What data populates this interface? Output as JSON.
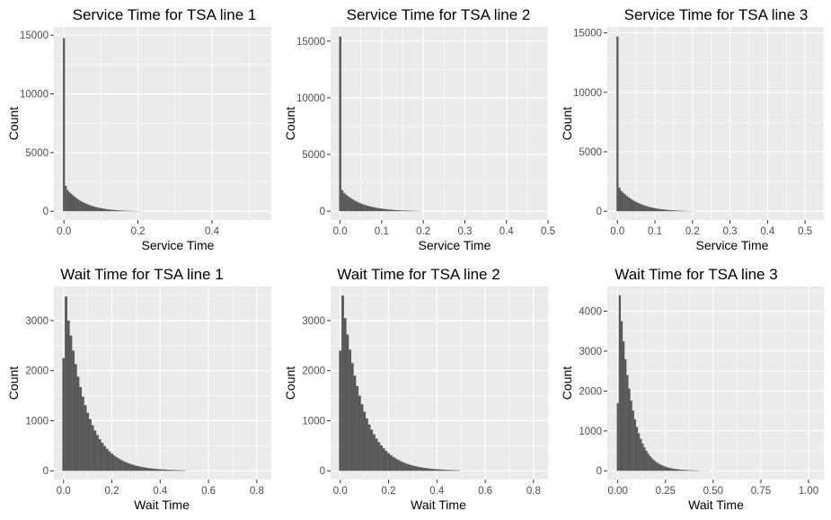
{
  "chart_data": [
    {
      "type": "bar",
      "title": "Service Time for TSA line 1",
      "xlabel": "Service Time",
      "ylabel": "Count",
      "xlim": [
        -0.027,
        0.56
      ],
      "ylim": [
        -750,
        15700
      ],
      "xticks": [
        0.0,
        0.2,
        0.4
      ],
      "xtick_labels": [
        "0.0",
        "0.2",
        "0.4"
      ],
      "yticks": [
        0,
        5000,
        10000,
        15000
      ],
      "ytick_labels": [
        "0",
        "5000",
        "10000",
        "15000"
      ],
      "x": [
        0.0,
        0.005,
        0.01,
        0.015,
        0.02,
        0.025,
        0.03,
        0.035,
        0.04,
        0.045,
        0.05,
        0.055,
        0.06,
        0.065,
        0.07,
        0.075,
        0.08,
        0.085,
        0.09,
        0.095,
        0.1,
        0.105,
        0.11,
        0.115,
        0.12,
        0.125,
        0.13,
        0.135,
        0.14,
        0.145,
        0.15,
        0.155,
        0.16,
        0.165,
        0.17,
        0.175,
        0.18,
        0.185,
        0.19,
        0.195,
        0.2,
        0.205
      ],
      "values": [
        14750,
        2150,
        1800,
        1620,
        1480,
        1340,
        1210,
        1090,
        980,
        880,
        790,
        710,
        640,
        575,
        515,
        460,
        410,
        370,
        330,
        295,
        262,
        232,
        205,
        182,
        160,
        142,
        124,
        110,
        96,
        84,
        74,
        64,
        56,
        48,
        42,
        36,
        30,
        26,
        22,
        18,
        15,
        12
      ],
      "grid": true
    },
    {
      "type": "bar",
      "title": "Service Time for TSA line 2",
      "xlabel": "Service Time",
      "ylabel": "Count",
      "xlim": [
        -0.023,
        0.5
      ],
      "ylim": [
        -780,
        16250
      ],
      "xticks": [
        0.0,
        0.1,
        0.2,
        0.3,
        0.4,
        0.5
      ],
      "xtick_labels": [
        "0.0",
        "0.1",
        "0.2",
        "0.3",
        "0.4",
        "0.5"
      ],
      "yticks": [
        0,
        5000,
        10000,
        15000
      ],
      "ytick_labels": [
        "0",
        "5000",
        "10000",
        "15000"
      ],
      "x": [
        0.0,
        0.005,
        0.01,
        0.015,
        0.02,
        0.025,
        0.03,
        0.035,
        0.04,
        0.045,
        0.05,
        0.055,
        0.06,
        0.065,
        0.07,
        0.075,
        0.08,
        0.085,
        0.09,
        0.095,
        0.1,
        0.105,
        0.11,
        0.115,
        0.12,
        0.125,
        0.13,
        0.135,
        0.14,
        0.145,
        0.15,
        0.155,
        0.16,
        0.165,
        0.17,
        0.175,
        0.18,
        0.185,
        0.19,
        0.195
      ],
      "values": [
        15400,
        1850,
        1600,
        1440,
        1300,
        1170,
        1050,
        940,
        845,
        760,
        680,
        610,
        548,
        490,
        440,
        395,
        352,
        315,
        282,
        252,
        225,
        200,
        178,
        158,
        140,
        124,
        110,
        97,
        86,
        76,
        66,
        58,
        51,
        44,
        38,
        33,
        28,
        24,
        20,
        16
      ],
      "grid": true
    },
    {
      "type": "bar",
      "title": "Service Time for TSA line 3",
      "xlabel": "Service Time",
      "ylabel": "Count",
      "xlim": [
        -0.027,
        0.55
      ],
      "ylim": [
        -740,
        15500
      ],
      "xticks": [
        0.0,
        0.1,
        0.2,
        0.3,
        0.4,
        0.5
      ],
      "xtick_labels": [
        "0.0",
        "0.1",
        "0.2",
        "0.3",
        "0.4",
        "0.5"
      ],
      "yticks": [
        0,
        5000,
        10000,
        15000
      ],
      "ytick_labels": [
        "0",
        "5000",
        "10000",
        "15000"
      ],
      "x": [
        0.0,
        0.005,
        0.01,
        0.015,
        0.02,
        0.025,
        0.03,
        0.035,
        0.04,
        0.045,
        0.05,
        0.055,
        0.06,
        0.065,
        0.07,
        0.075,
        0.08,
        0.085,
        0.09,
        0.095,
        0.1,
        0.105,
        0.11,
        0.115,
        0.12,
        0.125,
        0.13,
        0.135,
        0.14,
        0.145,
        0.15,
        0.155,
        0.16,
        0.165,
        0.17,
        0.175,
        0.18,
        0.185,
        0.19,
        0.195,
        0.2,
        0.205,
        0.21
      ],
      "values": [
        14700,
        2000,
        1720,
        1560,
        1420,
        1290,
        1170,
        1060,
        960,
        865,
        780,
        700,
        630,
        565,
        505,
        452,
        405,
        362,
        322,
        287,
        255,
        226,
        200,
        177,
        156,
        138,
        121,
        106,
        93,
        81,
        71,
        62,
        54,
        47,
        40,
        35,
        30,
        25,
        21,
        17,
        14,
        11,
        9
      ],
      "grid": true
    },
    {
      "type": "bar",
      "title": "Wait Time for TSA line 1",
      "xlabel": "Wait Time",
      "ylabel": "Count",
      "xlim": [
        -0.04,
        0.86
      ],
      "ylim": [
        -175,
        3680
      ],
      "xticks": [
        0.0,
        0.2,
        0.4,
        0.6,
        0.8
      ],
      "xtick_labels": [
        "0.0",
        "0.2",
        "0.4",
        "0.6",
        "0.8"
      ],
      "yticks": [
        0,
        1000,
        2000,
        3000
      ],
      "ytick_labels": [
        "0",
        "1000",
        "2000",
        "3000"
      ],
      "x": [
        0.0,
        0.01,
        0.02,
        0.03,
        0.04,
        0.05,
        0.06,
        0.07,
        0.08,
        0.09,
        0.1,
        0.11,
        0.12,
        0.13,
        0.14,
        0.15,
        0.16,
        0.17,
        0.18,
        0.19,
        0.2,
        0.21,
        0.22,
        0.23,
        0.24,
        0.25,
        0.26,
        0.27,
        0.28,
        0.29,
        0.3,
        0.31,
        0.32,
        0.33,
        0.34,
        0.35,
        0.36,
        0.37,
        0.38,
        0.39,
        0.4,
        0.41,
        0.42,
        0.43,
        0.44,
        0.45,
        0.46,
        0.47,
        0.48,
        0.49,
        0.5
      ],
      "values": [
        2250,
        3480,
        3000,
        2700,
        2400,
        2130,
        1880,
        1670,
        1480,
        1310,
        1160,
        1030,
        910,
        805,
        715,
        632,
        560,
        496,
        440,
        390,
        345,
        306,
        271,
        240,
        213,
        189,
        167,
        148,
        131,
        116,
        103,
        91,
        81,
        72,
        64,
        56,
        50,
        44,
        39,
        35,
        31,
        28,
        25,
        22,
        19,
        17,
        15,
        13,
        12,
        10,
        9
      ],
      "grid": true
    },
    {
      "type": "bar",
      "title": "Wait Time for TSA line 2",
      "xlabel": "Wait Time",
      "ylabel": "Count",
      "xlim": [
        -0.04,
        0.86
      ],
      "ylim": [
        -175,
        3680
      ],
      "xticks": [
        0.0,
        0.2,
        0.4,
        0.6,
        0.8
      ],
      "xtick_labels": [
        "0.0",
        "0.2",
        "0.4",
        "0.6",
        "0.8"
      ],
      "yticks": [
        0,
        1000,
        2000,
        3000
      ],
      "ytick_labels": [
        "0",
        "1000",
        "2000",
        "3000"
      ],
      "x": [
        0.0,
        0.01,
        0.02,
        0.03,
        0.04,
        0.05,
        0.06,
        0.07,
        0.08,
        0.09,
        0.1,
        0.11,
        0.12,
        0.13,
        0.14,
        0.15,
        0.16,
        0.17,
        0.18,
        0.19,
        0.2,
        0.21,
        0.22,
        0.23,
        0.24,
        0.25,
        0.26,
        0.27,
        0.28,
        0.29,
        0.3,
        0.31,
        0.32,
        0.33,
        0.34,
        0.35,
        0.36,
        0.37,
        0.38,
        0.39,
        0.4,
        0.41,
        0.42,
        0.43,
        0.44,
        0.45,
        0.46,
        0.47,
        0.48,
        0.49
      ],
      "values": [
        2400,
        3500,
        3050,
        2720,
        2420,
        2150,
        1900,
        1690,
        1500,
        1330,
        1180,
        1045,
        925,
        820,
        728,
        645,
        572,
        507,
        449,
        398,
        353,
        313,
        277,
        246,
        218,
        193,
        171,
        152,
        134,
        119,
        106,
        94,
        83,
        74,
        65,
        58,
        51,
        45,
        40,
        36,
        32,
        28,
        25,
        22,
        19,
        17,
        15,
        13,
        11,
        9
      ],
      "grid": true
    },
    {
      "type": "bar",
      "title": "Wait Time for TSA line 3",
      "xlabel": "Wait Time",
      "ylabel": "Count",
      "xlim": [
        -0.055,
        1.08
      ],
      "ylim": [
        -220,
        4620
      ],
      "xticks": [
        0.0,
        0.25,
        0.5,
        0.75,
        1.0
      ],
      "xtick_labels": [
        "0.00",
        "0.25",
        "0.50",
        "0.75",
        "1.00"
      ],
      "yticks": [
        0,
        1000,
        2000,
        3000,
        4000
      ],
      "ytick_labels": [
        "0",
        "1000",
        "2000",
        "3000",
        "4000"
      ],
      "x": [
        0.0,
        0.01,
        0.02,
        0.03,
        0.04,
        0.05,
        0.06,
        0.07,
        0.08,
        0.09,
        0.1,
        0.11,
        0.12,
        0.13,
        0.14,
        0.15,
        0.16,
        0.17,
        0.18,
        0.19,
        0.2,
        0.21,
        0.22,
        0.23,
        0.24,
        0.25,
        0.26,
        0.27,
        0.28,
        0.29,
        0.3,
        0.31,
        0.32,
        0.33,
        0.34,
        0.35,
        0.36,
        0.37,
        0.38,
        0.39,
        0.4,
        0.41,
        0.42,
        0.43,
        0.45,
        0.47,
        0.5
      ],
      "values": [
        1700,
        4400,
        3750,
        3250,
        2800,
        2400,
        2060,
        1760,
        1510,
        1290,
        1100,
        940,
        803,
        686,
        586,
        500,
        427,
        365,
        312,
        266,
        227,
        194,
        166,
        142,
        121,
        103,
        88,
        75,
        64,
        55,
        47,
        40,
        34,
        29,
        25,
        21,
        18,
        15,
        13,
        11,
        9,
        8,
        7,
        6,
        5,
        4,
        3
      ],
      "grid": true
    }
  ]
}
